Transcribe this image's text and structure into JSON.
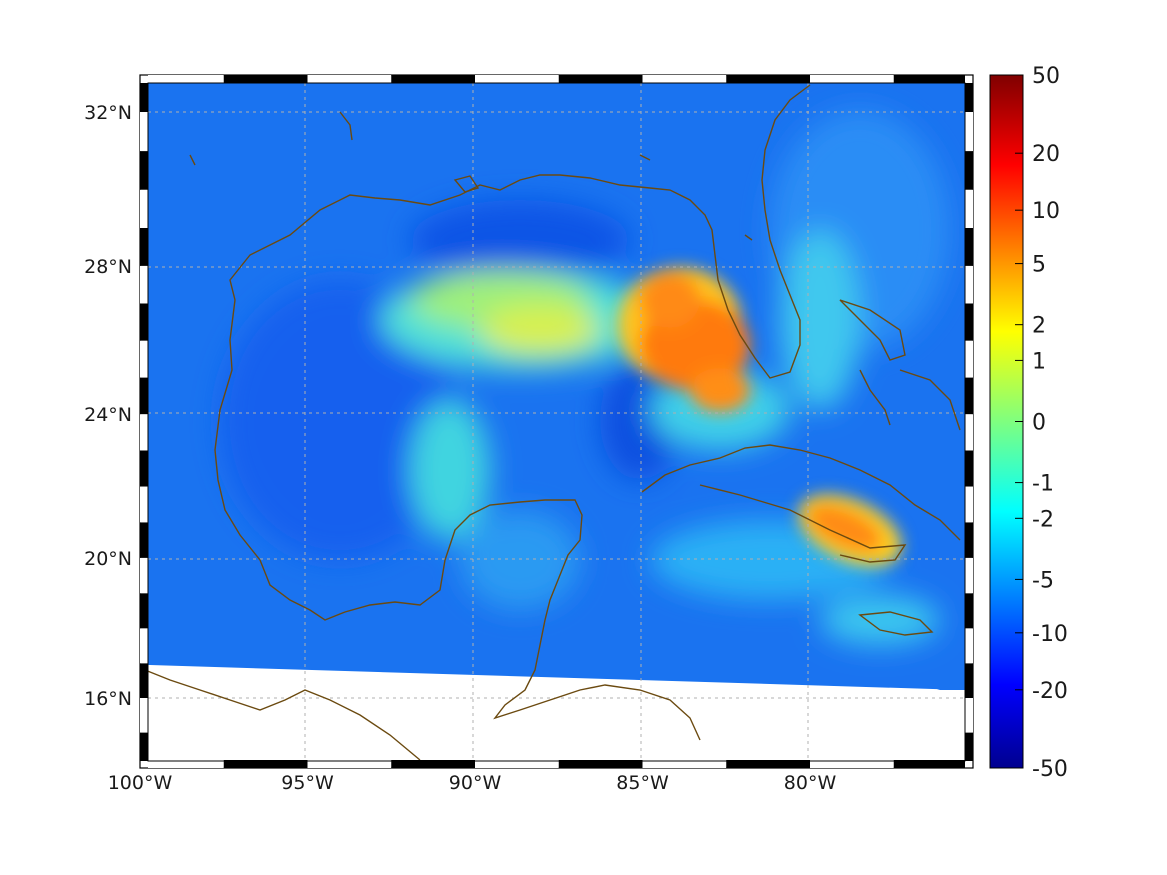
{
  "map": {
    "lon_labels": [
      {
        "lon": -100,
        "text": "100°W"
      },
      {
        "lon": -95,
        "text": "95°W"
      },
      {
        "lon": -90,
        "text": "90°W"
      },
      {
        "lon": -85,
        "text": "85°W"
      },
      {
        "lon": -80,
        "text": "80°W"
      }
    ],
    "lat_labels": [
      {
        "lat": 32,
        "text": "32°N"
      },
      {
        "lat": 28,
        "text": "28°N"
      },
      {
        "lat": 24,
        "text": "24°N"
      },
      {
        "lat": 20,
        "text": "20°N"
      },
      {
        "lat": 16,
        "text": "16°N"
      }
    ],
    "extent": {
      "lon_min": -100,
      "lon_max": -75,
      "lat_min": 14.6,
      "lat_max": 33
    },
    "grid": true,
    "coastline_color": "#6b4a10",
    "land_color": "#ffffff",
    "frame": "black-white checkered"
  },
  "colorbar": {
    "colormap": "jet",
    "scale": "symmetric-log",
    "position": "right",
    "ticks": [
      {
        "value": 50,
        "text": "50"
      },
      {
        "value": 20,
        "text": "20"
      },
      {
        "value": 10,
        "text": "10"
      },
      {
        "value": 5,
        "text": "5"
      },
      {
        "value": 2,
        "text": "2"
      },
      {
        "value": 1,
        "text": "1"
      },
      {
        "value": 0,
        "text": "0"
      },
      {
        "value": -1,
        "text": "-1"
      },
      {
        "value": -2,
        "text": "-2"
      },
      {
        "value": -5,
        "text": "-5"
      },
      {
        "value": -10,
        "text": "-10"
      },
      {
        "value": -20,
        "text": "-20"
      },
      {
        "value": -50,
        "text": "-50"
      }
    ]
  }
}
